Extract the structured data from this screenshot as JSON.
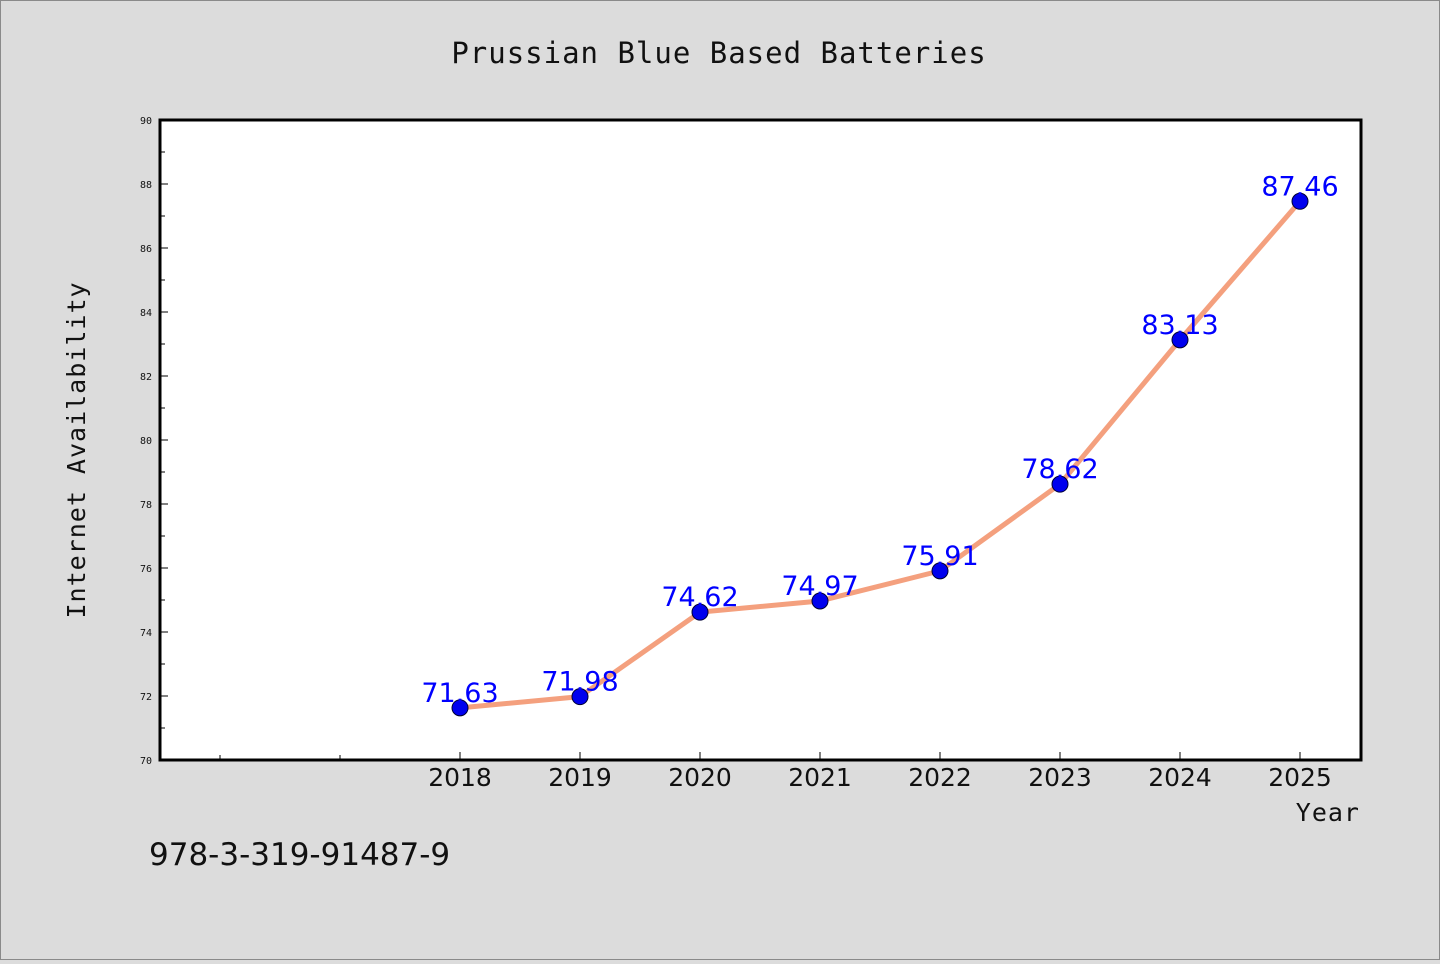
{
  "chart_data": {
    "type": "line",
    "title": "Prussian Blue Based Batteries",
    "xlabel": "Year",
    "ylabel": "Internet Availability",
    "categories": [
      "2018",
      "2019",
      "2020",
      "2021",
      "2022",
      "2023",
      "2024",
      "2025"
    ],
    "values": [
      71.63,
      71.98,
      74.62,
      74.97,
      75.91,
      78.62,
      83.13,
      87.46
    ],
    "data_labels": [
      "71.63",
      "71.98",
      "74.62",
      "74.97",
      "75.91",
      "78.62",
      "83.13",
      "87.46"
    ],
    "ylim": [
      70,
      90
    ],
    "yticks": [
      "70",
      "72",
      "74",
      "76",
      "78",
      "80",
      "82",
      "84",
      "86",
      "88",
      "90"
    ],
    "grid": false,
    "line_color": "#f4a07e",
    "marker_color": "#0000ee",
    "label_color": "#0000ff",
    "background_color": "#dcdcdc",
    "plot_background_color": "#ffffff"
  },
  "footer_text": "978-3-319-91487-9"
}
